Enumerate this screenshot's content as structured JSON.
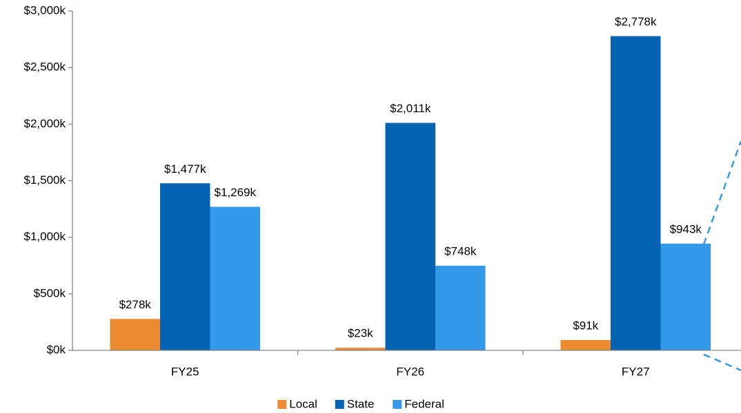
{
  "chart_data": {
    "type": "bar",
    "categories": [
      "FY25",
      "FY26",
      "FY27"
    ],
    "series": [
      {
        "name": "Local",
        "color": "#ed8b32",
        "values": [
          278,
          23,
          91
        ],
        "value_labels": [
          "$278k",
          "$23k",
          "$91k"
        ]
      },
      {
        "name": "State",
        "color": "#0563b4",
        "values": [
          1477,
          2011,
          2778
        ],
        "value_labels": [
          "$1,477k",
          "$2,011k",
          "$2,778k"
        ]
      },
      {
        "name": "Federal",
        "color": "#3399e8",
        "values": [
          1269,
          748,
          943
        ],
        "value_labels": [
          "$1,269k",
          "$748k",
          "$943k"
        ]
      }
    ],
    "ylim": [
      0,
      3000
    ],
    "yticks": [
      {
        "value": 0,
        "label": "$0k"
      },
      {
        "value": 500,
        "label": "$500k"
      },
      {
        "value": 1000,
        "label": "$1,000k"
      },
      {
        "value": 1500,
        "label": "$1,500k"
      },
      {
        "value": 2000,
        "label": "$2,000k"
      },
      {
        "value": 2500,
        "label": "$2,500k"
      },
      {
        "value": 3000,
        "label": "$3,000k"
      }
    ],
    "legend": "bottom"
  }
}
